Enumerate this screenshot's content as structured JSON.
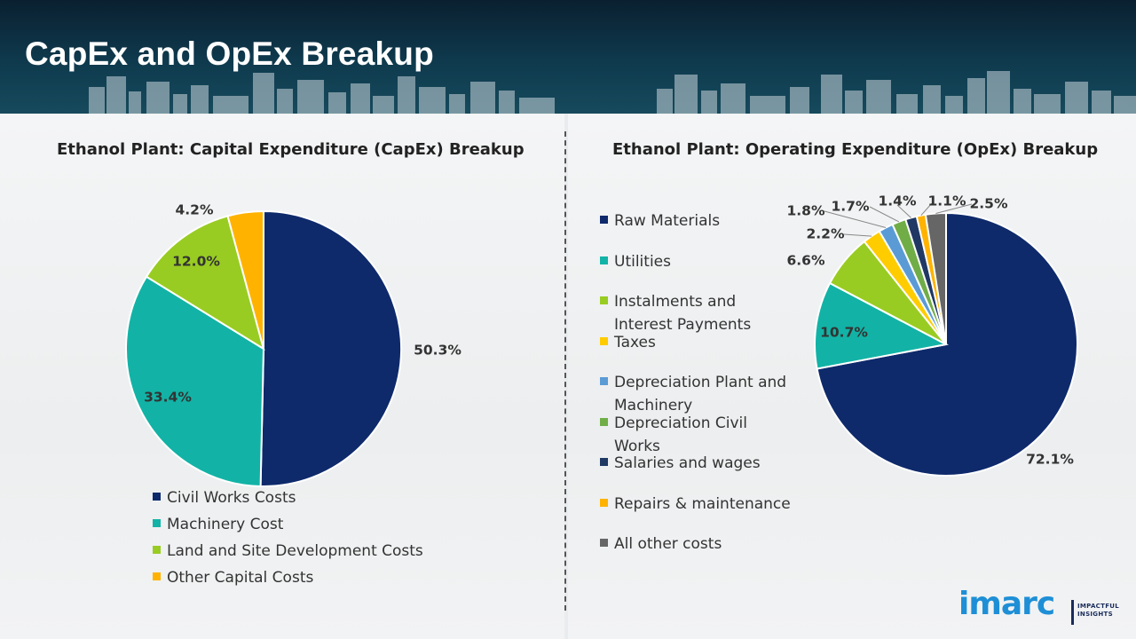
{
  "page": {
    "title": "CapEx and OpEx Breakup"
  },
  "logo": {
    "wordmark": "imarc",
    "tagline_line1": "IMPACTFUL",
    "tagline_line2": "INSIGHTS"
  },
  "chart_data": [
    {
      "type": "pie",
      "title": "Ethanol Plant: Capital Expenditure (CapEx) Breakup",
      "labels": [
        "Civil Works Costs",
        "Machinery Cost",
        "Land and Site Development Costs",
        "Other Capital Costs"
      ],
      "values": [
        50.3,
        33.4,
        12.0,
        4.2
      ],
      "value_labels": [
        "50.3%",
        "33.4%",
        "12.0%",
        "4.2%"
      ],
      "colors": [
        "#0e2a6b",
        "#12b3a6",
        "#99cc22",
        "#ffb300"
      ],
      "legend_position": "bottom",
      "start_angle_deg": 0,
      "direction": "clockwise"
    },
    {
      "type": "pie",
      "title": "Ethanol Plant: Operating Expenditure (OpEx) Breakup",
      "labels": [
        "Raw Materials",
        "Utilities",
        "Instalments and Interest Payments",
        "Taxes",
        "Depreciation Plant and Machinery",
        "Depreciation Civil Works",
        "Salaries and wages",
        "Repairs & maintenance",
        "All other costs"
      ],
      "values": [
        72.1,
        10.7,
        6.6,
        2.2,
        1.8,
        1.7,
        1.4,
        1.1,
        2.5
      ],
      "value_labels": [
        "72.1%",
        "10.7%",
        "6.6%",
        "2.2%",
        "1.8%",
        "1.7%",
        "1.4%",
        "1.1%",
        "2.5%"
      ],
      "colors": [
        "#0e2a6b",
        "#12b3a6",
        "#99cc22",
        "#ffcc00",
        "#5b9bd5",
        "#70ad47",
        "#1f3864",
        "#ffb300",
        "#666666"
      ],
      "legend_position": "left",
      "start_angle_deg": 0,
      "direction": "clockwise"
    }
  ]
}
